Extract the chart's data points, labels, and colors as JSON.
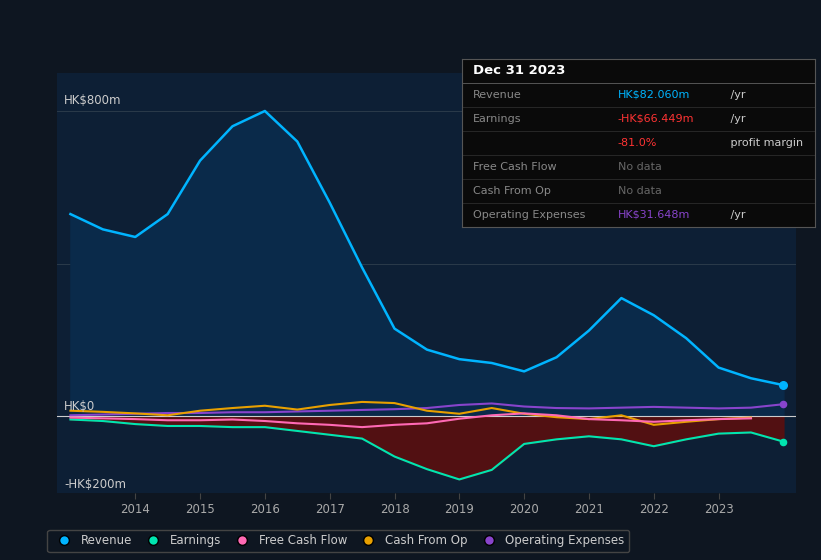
{
  "bg_color": "#0e1621",
  "chart_bg": "#0d1f35",
  "years": [
    2013.0,
    2013.5,
    2014.0,
    2014.5,
    2015.0,
    2015.5,
    2016.0,
    2016.5,
    2017.0,
    2017.5,
    2018.0,
    2018.5,
    2019.0,
    2019.5,
    2020.0,
    2020.5,
    2021.0,
    2021.5,
    2022.0,
    2022.5,
    2023.0,
    2023.5,
    2024.0
  ],
  "revenue": [
    530,
    490,
    470,
    530,
    670,
    760,
    800,
    720,
    560,
    390,
    230,
    175,
    150,
    140,
    118,
    155,
    225,
    310,
    265,
    205,
    128,
    100,
    82
  ],
  "earnings": [
    -8,
    -12,
    -20,
    -25,
    -25,
    -28,
    -28,
    -38,
    -48,
    -58,
    -105,
    -138,
    -165,
    -140,
    -72,
    -60,
    -52,
    -60,
    -78,
    -60,
    -45,
    -42,
    -66
  ],
  "free_cf": [
    -3,
    -5,
    -7,
    -10,
    -10,
    -8,
    -12,
    -18,
    -22,
    -28,
    -22,
    -18,
    -6,
    3,
    8,
    3,
    -7,
    -10,
    -14,
    -10,
    -7,
    -5,
    null
  ],
  "cash_from_op": [
    15,
    12,
    8,
    3,
    15,
    22,
    28,
    18,
    30,
    38,
    35,
    15,
    7,
    22,
    7,
    -2,
    -7,
    3,
    -22,
    -14,
    -7,
    -3,
    null
  ],
  "op_expenses": [
    3,
    5,
    7,
    9,
    9,
    11,
    11,
    13,
    15,
    17,
    19,
    22,
    30,
    34,
    26,
    22,
    21,
    23,
    25,
    23,
    21,
    23,
    32
  ],
  "colors": {
    "revenue_line": "#00b4ff",
    "revenue_fill": "#0a2a4a",
    "earnings_line": "#00e5b0",
    "earnings_fill": "#5a0f0f",
    "free_cf": "#ff69b4",
    "cash_from_op": "#e8a000",
    "op_expenses": "#8844cc",
    "zero_line": "#cccccc"
  },
  "ylim": [
    -200,
    900
  ],
  "chart_yticks": [
    -200,
    0,
    800
  ],
  "chart_ytick_labels": [
    "-HK$200m",
    "HK$0",
    "HK$800m"
  ],
  "xticks": [
    2014,
    2015,
    2016,
    2017,
    2018,
    2019,
    2020,
    2021,
    2022,
    2023
  ],
  "xlim_left": 2012.8,
  "xlim_right": 2024.2,
  "legend": [
    {
      "label": "Revenue",
      "color": "#00b4ff"
    },
    {
      "label": "Earnings",
      "color": "#00e5b0"
    },
    {
      "label": "Free Cash Flow",
      "color": "#ff69b4"
    },
    {
      "label": "Cash From Op",
      "color": "#e8a000"
    },
    {
      "label": "Operating Expenses",
      "color": "#8844cc"
    }
  ],
  "infobox": {
    "title": "Dec 31 2023",
    "bg": "#0a0a0a",
    "border": "#555555",
    "rows": [
      {
        "label": "Revenue",
        "value": "HK$82.060m",
        "suffix": " /yr",
        "label_color": "#888888",
        "value_color": "#00b4ff",
        "suffix_color": "#cccccc"
      },
      {
        "label": "Earnings",
        "value": "-HK$66.449m",
        "suffix": " /yr",
        "label_color": "#888888",
        "value_color": "#ff3333",
        "suffix_color": "#cccccc"
      },
      {
        "label": "",
        "value": "-81.0%",
        "suffix": " profit margin",
        "label_color": "#888888",
        "value_color": "#ff3333",
        "suffix_color": "#cccccc"
      },
      {
        "label": "Free Cash Flow",
        "value": "No data",
        "suffix": "",
        "label_color": "#888888",
        "value_color": "#666666",
        "suffix_color": "#666666"
      },
      {
        "label": "Cash From Op",
        "value": "No data",
        "suffix": "",
        "label_color": "#888888",
        "value_color": "#666666",
        "suffix_color": "#666666"
      },
      {
        "label": "Operating Expenses",
        "value": "HK$31.648m",
        "suffix": " /yr",
        "label_color": "#888888",
        "value_color": "#8844cc",
        "suffix_color": "#cccccc"
      }
    ]
  }
}
